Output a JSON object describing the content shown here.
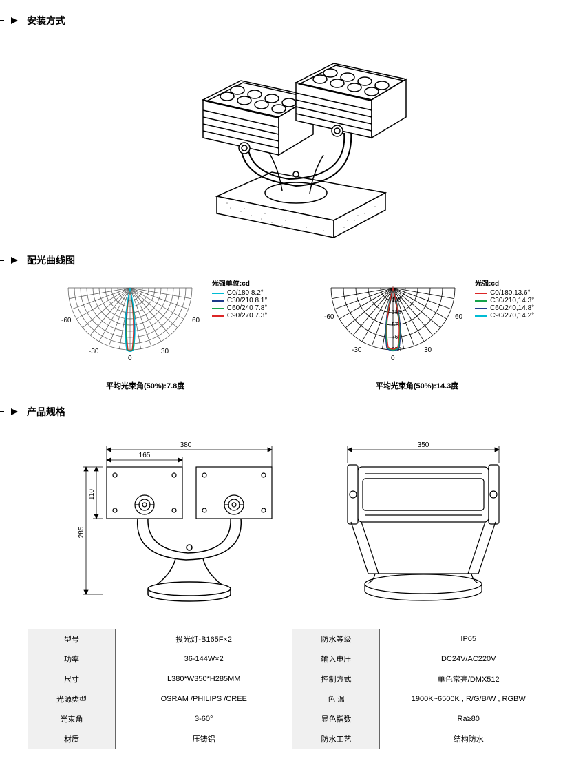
{
  "sections": {
    "install": "安装方式",
    "curve": "配光曲线图",
    "spec": "产品规格"
  },
  "polar1": {
    "angles": {
      "m60": "-60",
      "m30": "-30",
      "zero": "0",
      "p30": "30",
      "p60": "60"
    },
    "unit": "光强单位:cd",
    "legend": [
      {
        "color": "#00bcd4",
        "text": "C0/180 8.2°"
      },
      {
        "color": "#1e3a8a",
        "text": "C30/210 8.1°"
      },
      {
        "color": "#16a34a",
        "text": "C60/240 7.8°"
      },
      {
        "color": "#dc2626",
        "text": "C90/270 7.3°"
      }
    ],
    "avg": "平均光束角(50%):7.8度"
  },
  "polar2": {
    "angles": {
      "m60": "-60",
      "m30": "-30",
      "zero": "0",
      "p30": "30",
      "p60": "60"
    },
    "radial": [
      "190",
      "380",
      "570",
      "760",
      "950"
    ],
    "unit": "光强:cd",
    "legend": [
      {
        "color": "#dc2626",
        "text": "C0/180,13.6°"
      },
      {
        "color": "#16a34a",
        "text": "C30/210,14.3°"
      },
      {
        "color": "#1e3a8a",
        "text": "C60/240,14.8°"
      },
      {
        "color": "#00bcd4",
        "text": "C90/270,14.2°"
      }
    ],
    "avg": "平均光束角(50%):14.3度"
  },
  "dimensions": {
    "front": {
      "width": "380",
      "left_width": "165",
      "height": "285",
      "head_height": "110"
    },
    "side": {
      "width": "350"
    }
  },
  "table": {
    "rows": [
      {
        "l1": "型号",
        "v1": "投光灯-B165F×2",
        "l2": "防水等级",
        "v2": "IP65"
      },
      {
        "l1": "功率",
        "v1": "36-144W×2",
        "l2": "输入电压",
        "v2": "DC24V/AC220V"
      },
      {
        "l1": "尺寸",
        "v1": "L380*W350*H285MM",
        "l2": "控制方式",
        "v2": "单色常亮/DMX512"
      },
      {
        "l1": "光源类型",
        "v1": "OSRAM /PHILIPS /CREE",
        "l2": "色      温",
        "v2": "1900K~6500K , R/G/B/W , RGBW"
      },
      {
        "l1": "光束角",
        "v1": "3-60°",
        "l2": "显色指数",
        "v2": "Ra≥80"
      },
      {
        "l1": "材质",
        "v1": "压铸铝",
        "l2": "防水工艺",
        "v2": "结构防水"
      }
    ]
  },
  "colors": {
    "grid": "#555555",
    "text": "#000000",
    "line_stroke": "#000000"
  }
}
